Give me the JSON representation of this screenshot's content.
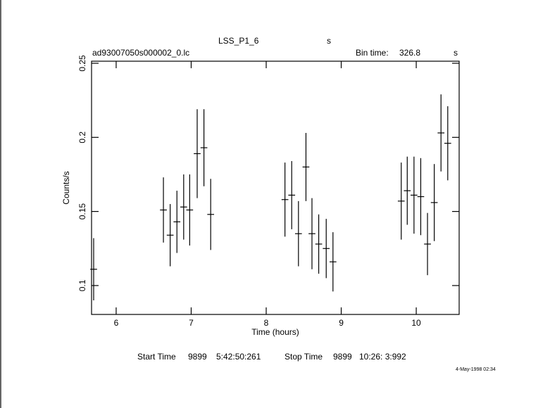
{
  "chart_data": {
    "type": "errorbar",
    "title": "LSS_P1_6",
    "title_unit": "s",
    "subtitle": "ad93007050s000002_0.lc",
    "bin_label": "Bin time:",
    "bin_time": 326.8,
    "bin_unit": "s",
    "x_label": "Time (hours)",
    "y_label": "Counts/s",
    "xlim": [
      5.672,
      10.572
    ],
    "xticks": [
      6,
      7,
      8,
      9,
      10
    ],
    "ylim": [
      0.0805,
      0.2514
    ],
    "yticks": [
      0.1,
      0.15,
      0.2,
      0.25
    ],
    "series": [
      {
        "color": "#000000",
        "x": [
          5.7,
          6.63,
          6.72,
          6.81,
          6.9,
          6.98,
          7.08,
          7.17,
          7.26,
          8.25,
          8.34,
          8.43,
          8.53,
          8.61,
          8.7,
          8.8,
          8.89,
          9.8,
          9.88,
          9.97,
          10.06,
          10.15,
          10.24,
          10.33,
          10.42
        ],
        "values": [
          0.111,
          0.151,
          0.134,
          0.143,
          0.153,
          0.151,
          0.189,
          0.193,
          0.148,
          0.158,
          0.161,
          0.135,
          0.18,
          0.135,
          0.128,
          0.125,
          0.116,
          0.157,
          0.164,
          0.161,
          0.16,
          0.128,
          0.156,
          0.203,
          0.196
        ],
        "errors": [
          0.021,
          0.022,
          0.021,
          0.021,
          0.022,
          0.024,
          0.03,
          0.026,
          0.024,
          0.025,
          0.023,
          0.022,
          0.023,
          0.024,
          0.02,
          0.02,
          0.02,
          0.026,
          0.023,
          0.026,
          0.026,
          0.021,
          0.026,
          0.026,
          0.025
        ]
      }
    ],
    "footer": {
      "start_label": "Start Time",
      "start_day": "9899",
      "start_time": "5:42:50:261",
      "stop_label": "Stop Time",
      "stop_day": "9899",
      "stop_time": "10:26: 3:992"
    },
    "date": "4-May-1998 02:34"
  }
}
